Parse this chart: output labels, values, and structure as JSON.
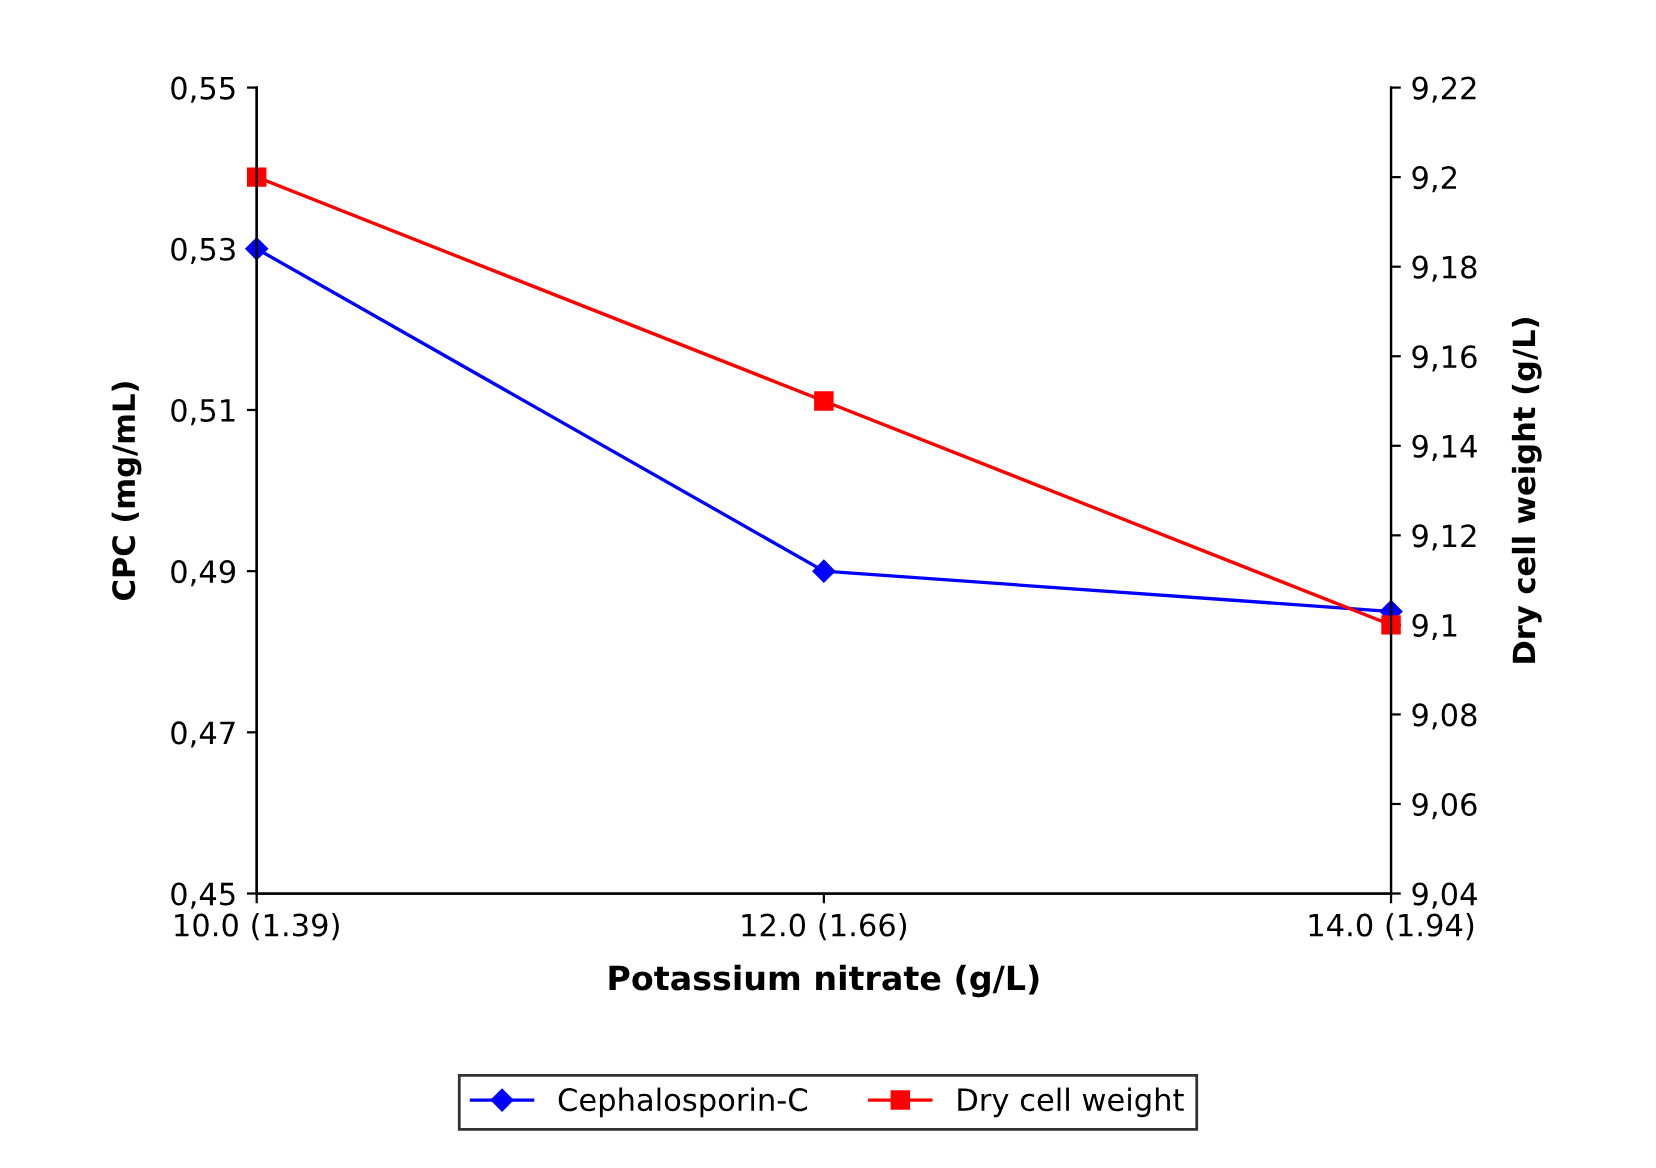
{
  "chart_data": {
    "type": "line",
    "xlabel": "Potassium nitrate (g/L)",
    "ylabel": "CPC (mg/mL)",
    "y2label": "Dry cell weight (g/L)",
    "categories": [
      "10.0 (1.39)",
      "12.0 (1.66)",
      "14.0 (1.94)"
    ],
    "series": [
      {
        "name": "Cephalosporin-C",
        "color": "#0000ff",
        "marker": "diamond",
        "values": [
          0.53,
          0.49,
          0.485
        ]
      },
      {
        "name": "Dry cell weight",
        "color": "#ff0000",
        "marker": "square",
        "axis": "y2",
        "values": [
          9.2,
          9.15,
          9.1
        ]
      }
    ],
    "ylim": [
      0.45,
      0.55
    ],
    "yticks": [
      {
        "value": 0.45,
        "label": "0,45"
      },
      {
        "value": 0.47,
        "label": "0,47"
      },
      {
        "value": 0.49,
        "label": "0,49"
      },
      {
        "value": 0.51,
        "label": "0,51"
      },
      {
        "value": 0.53,
        "label": "0,53"
      },
      {
        "value": 0.55,
        "label": "0,55"
      }
    ],
    "y2lim": [
      9.04,
      9.22
    ],
    "y2ticks": [
      {
        "value": 9.04,
        "label": "9,04"
      },
      {
        "value": 9.06,
        "label": "9,06"
      },
      {
        "value": 9.08,
        "label": "9,08"
      },
      {
        "value": 9.1,
        "label": "9,1"
      },
      {
        "value": 9.12,
        "label": "9,12"
      },
      {
        "value": 9.14,
        "label": "9,14"
      },
      {
        "value": 9.16,
        "label": "9,16"
      },
      {
        "value": 9.18,
        "label": "9,18"
      },
      {
        "value": 9.2,
        "label": "9,2"
      },
      {
        "value": 9.22,
        "label": "9,22"
      }
    ],
    "legend": "bottom",
    "line_style": "solid"
  }
}
